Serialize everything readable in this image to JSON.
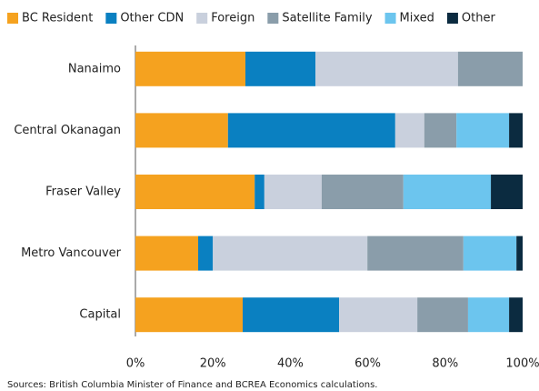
{
  "chart_data": {
    "type": "stacked_bar_horizontal",
    "categories": [
      "Nanaimo",
      "Central Okanagan",
      "Fraser Valley",
      "Metro Vancouver",
      "Capital"
    ],
    "series": [
      {
        "name": "BC Resident",
        "color": "#f5a21f",
        "values": [
          28.4,
          23.9,
          30.8,
          16.2,
          27.7
        ]
      },
      {
        "name": "Other CDN",
        "color": "#0a80c1",
        "values": [
          18.1,
          43.2,
          2.5,
          3.8,
          24.9
        ]
      },
      {
        "name": "Foreign",
        "color": "#c9d0dd",
        "values": [
          36.8,
          7.5,
          14.8,
          39.9,
          20.2
        ]
      },
      {
        "name": "Satellite Family",
        "color": "#8a9daa",
        "values": [
          16.7,
          8.3,
          21.1,
          24.8,
          13.1
        ]
      },
      {
        "name": "Mixed",
        "color": "#6cc5ee",
        "values": [
          0,
          13.6,
          22.6,
          13.7,
          10.6
        ]
      },
      {
        "name": "Other",
        "color": "#0b2b40",
        "values": [
          0,
          3.5,
          8.2,
          1.6,
          3.5
        ]
      }
    ],
    "xlim": [
      0,
      100
    ],
    "xticks": [
      {
        "value": 0,
        "label": "0%"
      },
      {
        "value": 20,
        "label": "20%"
      },
      {
        "value": 40,
        "label": "40%"
      },
      {
        "value": 60,
        "label": "60%"
      },
      {
        "value": 80,
        "label": "80%"
      },
      {
        "value": 100,
        "label": "100%"
      }
    ],
    "legend": "top",
    "source": "Sources: British Columbia Minister of Finance and BCREA Economics calculations."
  }
}
